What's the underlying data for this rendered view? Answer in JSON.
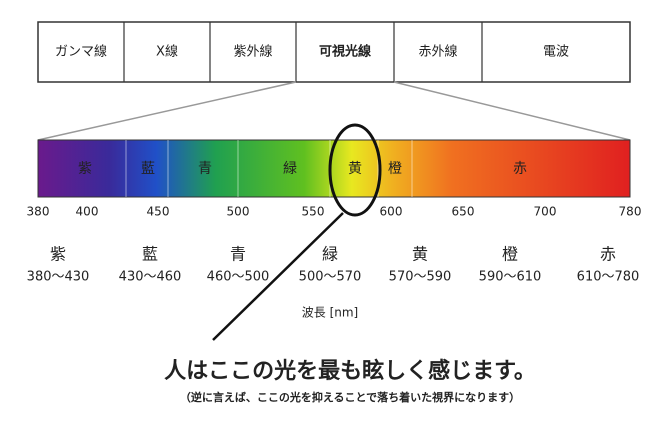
{
  "bands": [
    "ガンマ線",
    "X線",
    "紫外線",
    "可視光線",
    "赤外線",
    "電波"
  ],
  "spectrum_labels": [
    "紫",
    "藍",
    "青",
    "緑",
    "黄",
    "橙",
    "赤"
  ],
  "axis_ticks": [
    "380",
    "400",
    "450",
    "500",
    "550",
    "600",
    "650",
    "700",
    "780"
  ],
  "colors": [
    {
      "name": "紫",
      "range": "380〜430"
    },
    {
      "name": "藍",
      "range": "430〜460"
    },
    {
      "name": "青",
      "range": "460〜500"
    },
    {
      "name": "緑",
      "range": "500〜570"
    },
    {
      "name": "黄",
      "range": "570〜590"
    },
    {
      "name": "橙",
      "range": "590〜610"
    },
    {
      "name": "赤",
      "range": "610〜780"
    }
  ],
  "axis_label": "波長 [nm]",
  "headline": "人はここの光を最も眩しく感じます。",
  "note": "（逆に言えば、ここの光を抑えることで落ち着いた視界になります）"
}
